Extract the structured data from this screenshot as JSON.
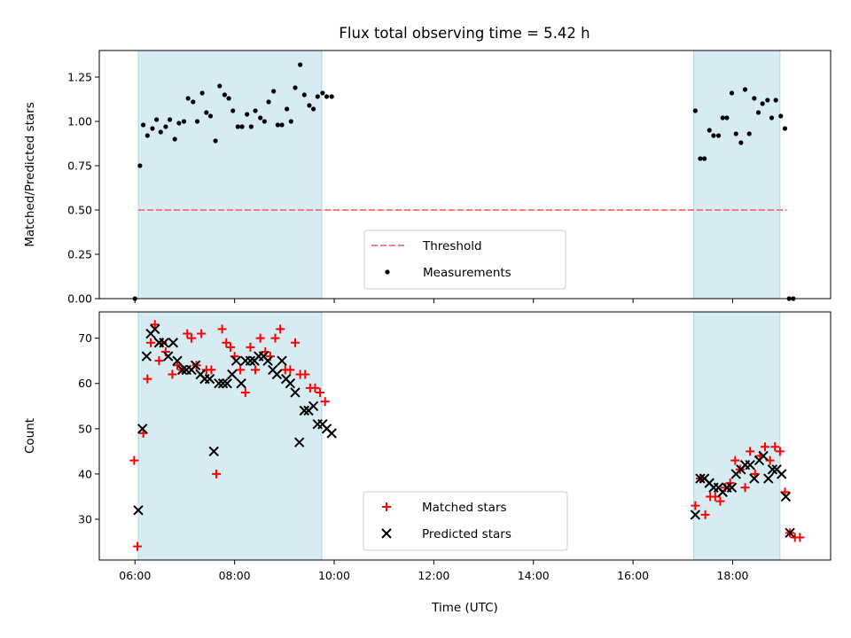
{
  "chart_data": [
    {
      "type": "scatter",
      "title": "Flux total observing time = 5.42 h",
      "xlabel": "",
      "ylabel": "Matched/Predicted stars",
      "xlim": [
        "05:17",
        "19:58"
      ],
      "ylim": [
        0,
        1.4
      ],
      "y_ticks": [
        "0.00",
        "0.25",
        "0.50",
        "0.75",
        "1.00",
        "1.25"
      ],
      "x_ticks": [
        "06:00",
        "08:00",
        "10:00",
        "12:00",
        "14:00",
        "16:00",
        "18:00"
      ],
      "x_tick_labels_shown": false,
      "legend_position": "bottom-center",
      "shaded_intervals": [
        [
          "06:04",
          "09:45"
        ],
        [
          "17:13",
          "18:57"
        ]
      ],
      "threshold": {
        "name": "Threshold",
        "value": 0.5,
        "x_range": [
          "06:04",
          "19:05"
        ],
        "color": "#f08080",
        "style": "dashed"
      },
      "series": [
        {
          "name": "Measurements",
          "color": "#000000",
          "marker": "dot",
          "points": [
            [
              "06:00",
              0.0
            ],
            [
              "06:06",
              0.75
            ],
            [
              "06:10",
              0.98
            ],
            [
              "06:15",
              0.92
            ],
            [
              "06:21",
              0.96
            ],
            [
              "06:26",
              1.01
            ],
            [
              "06:31",
              0.94
            ],
            [
              "06:37",
              0.97
            ],
            [
              "06:42",
              1.01
            ],
            [
              "06:48",
              0.9
            ],
            [
              "06:53",
              0.99
            ],
            [
              "06:59",
              1.0
            ],
            [
              "07:04",
              1.13
            ],
            [
              "07:10",
              1.11
            ],
            [
              "07:15",
              1.0
            ],
            [
              "07:21",
              1.16
            ],
            [
              "07:26",
              1.05
            ],
            [
              "07:31",
              1.03
            ],
            [
              "07:37",
              0.89
            ],
            [
              "07:42",
              1.2
            ],
            [
              "07:48",
              1.15
            ],
            [
              "07:53",
              1.13
            ],
            [
              "07:58",
              1.06
            ],
            [
              "08:04",
              0.97
            ],
            [
              "08:09",
              0.97
            ],
            [
              "08:15",
              1.04
            ],
            [
              "08:20",
              0.97
            ],
            [
              "08:25",
              1.06
            ],
            [
              "08:31",
              1.02
            ],
            [
              "08:36",
              1.0
            ],
            [
              "08:41",
              1.11
            ],
            [
              "08:47",
              1.17
            ],
            [
              "08:52",
              0.98
            ],
            [
              "08:57",
              0.98
            ],
            [
              "09:03",
              1.07
            ],
            [
              "09:08",
              1.0
            ],
            [
              "09:13",
              1.19
            ],
            [
              "09:19",
              1.32
            ],
            [
              "09:24",
              1.15
            ],
            [
              "09:30",
              1.09
            ],
            [
              "09:35",
              1.07
            ],
            [
              "09:40",
              1.14
            ],
            [
              "09:46",
              1.16
            ],
            [
              "09:51",
              1.14
            ],
            [
              "09:57",
              1.14
            ],
            [
              "17:15",
              1.06
            ],
            [
              "17:21",
              0.79
            ],
            [
              "17:26",
              0.79
            ],
            [
              "17:32",
              0.95
            ],
            [
              "17:37",
              0.92
            ],
            [
              "17:43",
              0.92
            ],
            [
              "17:48",
              1.02
            ],
            [
              "17:53",
              1.02
            ],
            [
              "17:59",
              1.16
            ],
            [
              "18:04",
              0.93
            ],
            [
              "18:10",
              0.88
            ],
            [
              "18:15",
              1.18
            ],
            [
              "18:20",
              0.93
            ],
            [
              "18:26",
              1.13
            ],
            [
              "18:31",
              1.05
            ],
            [
              "18:36",
              1.1
            ],
            [
              "18:42",
              1.12
            ],
            [
              "18:47",
              1.02
            ],
            [
              "18:52",
              1.12
            ],
            [
              "18:58",
              1.03
            ],
            [
              "19:03",
              0.96
            ],
            [
              "19:08",
              0.0
            ],
            [
              "19:13",
              0.0
            ]
          ]
        }
      ]
    },
    {
      "type": "scatter",
      "title": "",
      "xlabel": "Time (UTC)",
      "ylabel": "Count",
      "xlim": [
        "05:17",
        "19:58"
      ],
      "ylim": [
        21,
        75.8
      ],
      "y_ticks": [
        "30",
        "40",
        "50",
        "60",
        "70"
      ],
      "x_ticks": [
        "06:00",
        "08:00",
        "10:00",
        "12:00",
        "14:00",
        "16:00",
        "18:00"
      ],
      "legend_position": "bottom-center",
      "shaded_intervals": [
        [
          "06:04",
          "09:45"
        ],
        [
          "17:13",
          "18:57"
        ]
      ],
      "series": [
        {
          "name": "Matched stars",
          "color": "#ff0000",
          "marker": "plus",
          "points": [
            [
              "05:59",
              43
            ],
            [
              "06:03",
              24
            ],
            [
              "06:10",
              49
            ],
            [
              "06:15",
              61
            ],
            [
              "06:19",
              69
            ],
            [
              "06:24",
              73
            ],
            [
              "06:29",
              65
            ],
            [
              "06:33",
              69
            ],
            [
              "06:37",
              67
            ],
            [
              "06:45",
              62
            ],
            [
              "06:51",
              64
            ],
            [
              "06:57",
              63
            ],
            [
              "07:03",
              71
            ],
            [
              "07:08",
              70
            ],
            [
              "07:14",
              64
            ],
            [
              "07:20",
              71
            ],
            [
              "07:26",
              63
            ],
            [
              "07:32",
              63
            ],
            [
              "07:38",
              40
            ],
            [
              "07:45",
              72
            ],
            [
              "07:50",
              69
            ],
            [
              "07:55",
              68
            ],
            [
              "08:00",
              66
            ],
            [
              "08:07",
              63
            ],
            [
              "08:13",
              58
            ],
            [
              "08:19",
              68
            ],
            [
              "08:25",
              63
            ],
            [
              "08:31",
              70
            ],
            [
              "08:37",
              67
            ],
            [
              "08:43",
              66
            ],
            [
              "08:49",
              70
            ],
            [
              "08:55",
              72
            ],
            [
              "09:01",
              63
            ],
            [
              "09:07",
              63
            ],
            [
              "09:13",
              69
            ],
            [
              "09:19",
              62
            ],
            [
              "09:25",
              62
            ],
            [
              "09:31",
              59
            ],
            [
              "09:37",
              59
            ],
            [
              "09:43",
              58
            ],
            [
              "09:49",
              56
            ],
            [
              "17:15",
              33
            ],
            [
              "17:21",
              39
            ],
            [
              "17:27",
              31
            ],
            [
              "17:33",
              35
            ],
            [
              "17:39",
              35
            ],
            [
              "17:45",
              34
            ],
            [
              "17:51",
              37
            ],
            [
              "17:57",
              38
            ],
            [
              "18:03",
              43
            ],
            [
              "18:09",
              41
            ],
            [
              "18:15",
              37
            ],
            [
              "18:21",
              45
            ],
            [
              "18:27",
              40
            ],
            [
              "18:33",
              44
            ],
            [
              "18:39",
              46
            ],
            [
              "18:45",
              43
            ],
            [
              "18:51",
              46
            ],
            [
              "18:57",
              45
            ],
            [
              "19:03",
              36
            ],
            [
              "19:09",
              27
            ],
            [
              "19:15",
              26
            ],
            [
              "19:21",
              26
            ]
          ]
        },
        {
          "name": "Predicted stars",
          "color": "#000000",
          "marker": "x",
          "points": [
            [
              "06:04",
              32
            ],
            [
              "06:09",
              50
            ],
            [
              "06:14",
              66
            ],
            [
              "06:19",
              71
            ],
            [
              "06:24",
              72
            ],
            [
              "06:29",
              69
            ],
            [
              "06:35",
              69
            ],
            [
              "06:40",
              66
            ],
            [
              "06:46",
              69
            ],
            [
              "06:51",
              65
            ],
            [
              "06:57",
              63
            ],
            [
              "07:02",
              63
            ],
            [
              "07:08",
              63
            ],
            [
              "07:13",
              64
            ],
            [
              "07:19",
              62
            ],
            [
              "07:24",
              61
            ],
            [
              "07:30",
              61
            ],
            [
              "07:35",
              45
            ],
            [
              "07:41",
              60
            ],
            [
              "07:46",
              60
            ],
            [
              "07:51",
              60
            ],
            [
              "07:57",
              62
            ],
            [
              "08:02",
              65
            ],
            [
              "08:08",
              60
            ],
            [
              "08:13",
              65
            ],
            [
              "08:19",
              65
            ],
            [
              "08:24",
              65
            ],
            [
              "08:29",
              66
            ],
            [
              "08:35",
              66
            ],
            [
              "08:40",
              65
            ],
            [
              "08:46",
              63
            ],
            [
              "08:51",
              62
            ],
            [
              "08:57",
              65
            ],
            [
              "09:02",
              61
            ],
            [
              "09:07",
              60
            ],
            [
              "09:13",
              58
            ],
            [
              "09:18",
              47
            ],
            [
              "09:24",
              54
            ],
            [
              "09:29",
              54
            ],
            [
              "09:35",
              55
            ],
            [
              "09:40",
              51
            ],
            [
              "09:46",
              51
            ],
            [
              "09:51",
              50
            ],
            [
              "09:57",
              49
            ],
            [
              "17:15",
              31
            ],
            [
              "17:21",
              39
            ],
            [
              "17:26",
              39
            ],
            [
              "17:32",
              38
            ],
            [
              "17:37",
              37
            ],
            [
              "17:43",
              37
            ],
            [
              "17:48",
              36
            ],
            [
              "17:53",
              37
            ],
            [
              "17:59",
              37
            ],
            [
              "18:04",
              40
            ],
            [
              "18:10",
              41
            ],
            [
              "18:15",
              42
            ],
            [
              "18:21",
              42
            ],
            [
              "18:26",
              39
            ],
            [
              "18:32",
              43
            ],
            [
              "18:37",
              44
            ],
            [
              "18:43",
              39
            ],
            [
              "18:48",
              41
            ],
            [
              "18:53",
              41
            ],
            [
              "18:59",
              40
            ],
            [
              "19:04",
              35
            ],
            [
              "19:09",
              27
            ]
          ]
        }
      ]
    }
  ]
}
